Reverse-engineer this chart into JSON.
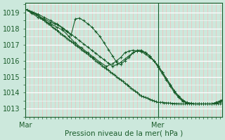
{
  "background_color": "#cce8dc",
  "plot_bg_color": "#cce8dc",
  "grid_major_color": "#ffffff",
  "grid_minor_color_x": "#ffb0b0",
  "grid_minor_color_y": "#e8e8e8",
  "line_color": "#1a5c2a",
  "xlabel": "Pression niveau de la mer( hPa )",
  "xtick_labels": [
    "Mar",
    "Mer"
  ],
  "xtick_positions": [
    0,
    64
  ],
  "xlim": [
    0,
    95
  ],
  "ylim": [
    1012.5,
    1019.6
  ],
  "yticks": [
    1013,
    1014,
    1015,
    1016,
    1017,
    1018,
    1019
  ],
  "vline_x": 64,
  "line1_x": [
    0,
    1,
    2,
    3,
    4,
    5,
    6,
    7,
    8,
    9,
    10,
    11,
    12,
    13,
    14,
    15,
    16,
    17,
    18,
    19,
    20,
    21,
    22,
    23,
    24,
    25,
    26,
    27,
    28,
    29,
    30,
    31,
    32,
    33,
    34,
    35,
    36,
    37,
    38,
    39,
    40,
    41,
    42,
    43,
    44,
    45,
    46,
    47,
    48,
    49,
    50,
    51,
    52,
    53,
    54,
    55,
    56,
    57,
    58,
    59,
    60,
    61,
    62,
    63,
    64,
    65,
    66,
    67,
    68,
    69,
    70,
    71,
    72,
    73,
    74,
    75,
    76,
    77,
    78,
    79,
    80,
    81,
    82,
    83,
    84,
    85,
    86,
    87,
    88,
    89,
    90,
    91,
    92,
    93,
    94,
    95
  ],
  "line1_y": [
    1019.2,
    1019.15,
    1019.1,
    1019.05,
    1019.0,
    1018.9,
    1018.8,
    1018.7,
    1018.6,
    1018.5,
    1018.4,
    1018.3,
    1018.2,
    1018.1,
    1018.0,
    1017.9,
    1017.8,
    1017.7,
    1017.6,
    1017.5,
    1017.4,
    1017.3,
    1017.2,
    1017.1,
    1017.0,
    1016.9,
    1016.8,
    1016.7,
    1016.6,
    1016.5,
    1016.4,
    1016.3,
    1016.2,
    1016.1,
    1016.0,
    1015.9,
    1015.8,
    1015.7,
    1015.6,
    1015.5,
    1015.4,
    1015.3,
    1015.2,
    1015.1,
    1015.0,
    1014.9,
    1014.8,
    1014.7,
    1014.6,
    1014.5,
    1014.4,
    1014.3,
    1014.2,
    1014.1,
    1014.0,
    1013.9,
    1013.8,
    1013.75,
    1013.7,
    1013.65,
    1013.6,
    1013.55,
    1013.5,
    1013.45,
    1013.4,
    1013.4,
    1013.4,
    1013.38,
    1013.37,
    1013.36,
    1013.35,
    1013.34,
    1013.33,
    1013.32,
    1013.31,
    1013.3,
    1013.3,
    1013.3,
    1013.3,
    1013.3,
    1013.3,
    1013.3,
    1013.3,
    1013.3,
    1013.3,
    1013.3,
    1013.3,
    1013.3,
    1013.3,
    1013.3,
    1013.3,
    1013.3,
    1013.3,
    1013.3,
    1013.3,
    1013.3
  ],
  "line2_x": [
    0,
    3,
    6,
    9,
    12,
    15,
    18,
    21,
    24,
    27,
    30,
    33,
    36,
    39,
    42,
    44,
    46,
    48,
    50,
    52,
    54,
    56,
    58,
    60,
    62,
    64,
    66,
    68,
    70,
    72,
    74,
    76,
    78,
    80,
    82,
    84,
    86,
    88,
    90,
    92,
    94,
    95
  ],
  "line2_y": [
    1019.2,
    1018.95,
    1018.7,
    1018.5,
    1018.3,
    1018.1,
    1017.9,
    1017.5,
    1017.1,
    1016.8,
    1016.5,
    1016.2,
    1015.9,
    1015.65,
    1015.8,
    1016.0,
    1016.2,
    1016.5,
    1016.6,
    1016.65,
    1016.6,
    1016.55,
    1016.4,
    1016.2,
    1016.0,
    1015.7,
    1015.3,
    1014.9,
    1014.5,
    1014.1,
    1013.8,
    1013.55,
    1013.4,
    1013.35,
    1013.3,
    1013.3,
    1013.3,
    1013.3,
    1013.3,
    1013.4,
    1013.5,
    1013.55
  ],
  "line3_x": [
    0,
    3,
    6,
    9,
    12,
    14,
    16,
    18,
    20,
    22,
    24,
    26,
    28,
    30,
    32,
    34,
    36,
    38,
    40,
    42,
    44,
    46,
    48,
    50,
    52,
    54,
    56,
    58,
    60,
    62,
    64,
    66,
    68,
    70,
    72,
    74,
    76,
    78,
    80,
    82,
    84,
    86,
    88,
    90,
    92,
    94,
    95
  ],
  "line3_y": [
    1019.2,
    1019.0,
    1018.8,
    1018.6,
    1018.4,
    1018.3,
    1018.2,
    1018.0,
    1017.8,
    1017.6,
    1018.6,
    1018.65,
    1018.5,
    1018.3,
    1018.1,
    1017.8,
    1017.5,
    1017.1,
    1016.7,
    1016.3,
    1015.9,
    1015.75,
    1016.0,
    1016.2,
    1016.5,
    1016.65,
    1016.65,
    1016.5,
    1016.3,
    1016.0,
    1015.7,
    1015.3,
    1014.9,
    1014.5,
    1014.1,
    1013.75,
    1013.5,
    1013.35,
    1013.3,
    1013.3,
    1013.3,
    1013.3,
    1013.3,
    1013.3,
    1013.35,
    1013.45,
    1013.55
  ],
  "line4_x": [
    0,
    3,
    6,
    9,
    12,
    15,
    18,
    20,
    22,
    24,
    26,
    28,
    30,
    32,
    34,
    36,
    38,
    40,
    42,
    44,
    46,
    48,
    50,
    52,
    54,
    56,
    58,
    60,
    62,
    64,
    66,
    68,
    70,
    72,
    74,
    76,
    78,
    80,
    82,
    84,
    86,
    88,
    90,
    92,
    94,
    95
  ],
  "line4_y": [
    1019.2,
    1019.05,
    1018.9,
    1018.7,
    1018.5,
    1018.3,
    1018.05,
    1017.85,
    1017.65,
    1017.45,
    1017.25,
    1017.05,
    1016.85,
    1016.65,
    1016.45,
    1016.25,
    1016.05,
    1015.85,
    1015.65,
    1015.75,
    1015.9,
    1016.1,
    1016.3,
    1016.5,
    1016.6,
    1016.6,
    1016.5,
    1016.3,
    1016.0,
    1015.6,
    1015.2,
    1014.8,
    1014.4,
    1014.0,
    1013.7,
    1013.45,
    1013.35,
    1013.3,
    1013.3,
    1013.3,
    1013.3,
    1013.3,
    1013.3,
    1013.3,
    1013.4,
    1013.5
  ]
}
